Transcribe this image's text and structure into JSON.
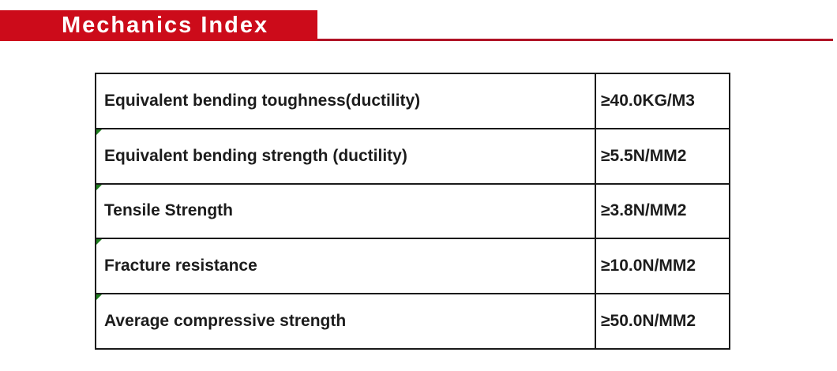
{
  "header": {
    "title": "Mechanics Index"
  },
  "colors": {
    "banner_red": "#cc0b1a",
    "underline_red": "#b01326",
    "table_border": "#1a1a1a",
    "text": "#1c1c1c",
    "corner_marker_green": "#1e7e1e"
  },
  "table": {
    "rows": [
      {
        "label": "Equivalent bending toughness(ductility)",
        "value": "≥40.0KG/M3",
        "marker": false
      },
      {
        "label": "Equivalent bending strength (ductility)",
        "value": "≥5.5N/MM2",
        "marker": true
      },
      {
        "label": "Tensile Strength",
        "value": "≥3.8N/MM2",
        "marker": true
      },
      {
        "label": "Fracture resistance",
        "value": "≥10.0N/MM2",
        "marker": true
      },
      {
        "label": "Average compressive strength",
        "value": "≥50.0N/MM2",
        "marker": true
      }
    ]
  }
}
